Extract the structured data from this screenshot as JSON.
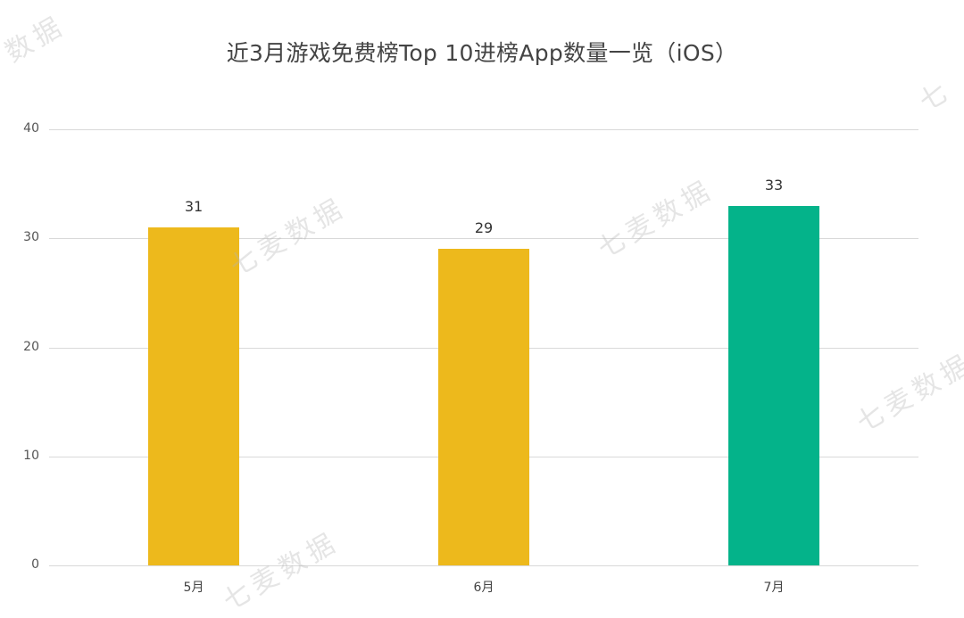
{
  "chart_data": {
    "type": "bar",
    "title": "近3月游戏免费榜Top 10进榜App数量一览（iOS）",
    "categories": [
      "5月",
      "6月",
      "7月"
    ],
    "values": [
      31,
      29,
      33
    ],
    "data_labels": [
      "31",
      "29",
      "33"
    ],
    "bar_colors": [
      "#EDB91C",
      "#EDB91C",
      "#04B38A"
    ],
    "xlabel": "",
    "ylabel": "",
    "ylim": [
      0,
      40
    ],
    "yticks": [
      0,
      10,
      20,
      30,
      40
    ],
    "ytick_labels": [
      "0",
      "10",
      "20",
      "30",
      "40"
    ],
    "grid": true,
    "legend": null
  },
  "watermark": {
    "text": "七麦数据",
    "partial_top_left": "数据",
    "partial_top_right": "七"
  }
}
